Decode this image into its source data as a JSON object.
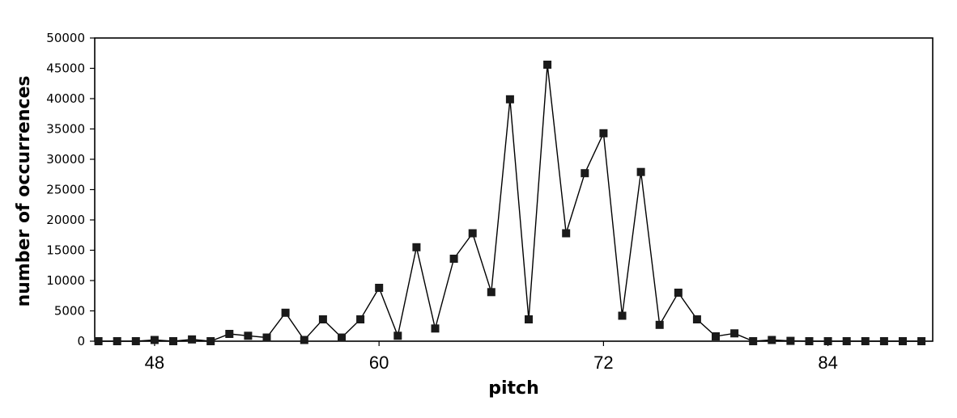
{
  "chart_data": {
    "type": "line",
    "title": "",
    "xlabel": "pitch",
    "ylabel": "number of occurrences",
    "xlim": [
      44.8,
      89.6
    ],
    "ylim": [
      0,
      50000
    ],
    "xticks": [
      48,
      60,
      72,
      84
    ],
    "yticks": [
      0,
      5000,
      10000,
      15000,
      20000,
      25000,
      30000,
      35000,
      40000,
      45000,
      50000
    ],
    "grid": false,
    "legend": "none",
    "marker": "square",
    "colors": {
      "line": "#000000",
      "marker": "#1a1a1a",
      "axis": "#000000"
    },
    "series": [
      {
        "x": [
          45,
          46,
          47,
          48,
          49,
          50,
          51,
          52,
          53,
          54,
          55,
          56,
          57,
          58,
          59,
          60,
          61,
          62,
          63,
          64,
          65,
          66,
          67,
          68,
          69,
          70,
          71,
          72,
          73,
          74,
          75,
          76,
          77,
          78,
          79,
          80,
          81,
          82,
          83,
          84,
          85,
          86,
          87,
          88,
          89
        ],
        "y": [
          0,
          0,
          0,
          200,
          0,
          300,
          0,
          1200,
          900,
          600,
          4700,
          200,
          3600,
          600,
          3600,
          8800,
          900,
          15500,
          2100,
          13600,
          17800,
          8100,
          39900,
          3600,
          45600,
          17800,
          27700,
          34300,
          4200,
          27900,
          2700,
          8000,
          3600,
          800,
          1300,
          0,
          200,
          50,
          0,
          0,
          0,
          0,
          0,
          0,
          0
        ]
      }
    ]
  }
}
